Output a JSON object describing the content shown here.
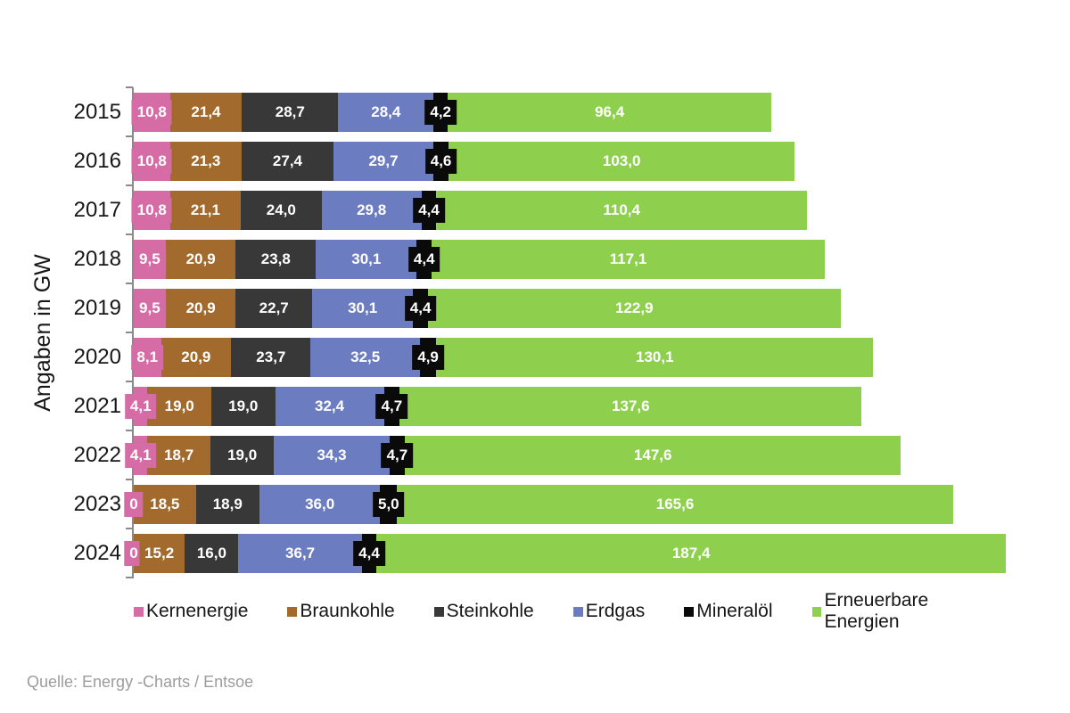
{
  "y_axis_label": "Angaben in GW",
  "source_note": "Quelle: Energy -Charts / Entsoe",
  "chart_data": {
    "type": "bar",
    "orientation": "horizontal_stacked",
    "title": "",
    "ylabel": "Angaben in GW",
    "xlabel": "",
    "unit": "GW",
    "xlim": [
      0,
      260
    ],
    "grid": false,
    "legend_position": "bottom",
    "value_format": "german decimal comma, white bold labels on segment-colored boxes",
    "categories": [
      "2015",
      "2016",
      "2017",
      "2018",
      "2019",
      "2020",
      "2021",
      "2022",
      "2023",
      "2024"
    ],
    "series": [
      {
        "name": "Kernenergie",
        "color": "#d56ca6",
        "values": [
          10.8,
          10.8,
          10.8,
          9.5,
          9.5,
          8.1,
          4.1,
          4.1,
          0,
          0
        ],
        "labels": [
          "10,8",
          "10,8",
          "10,8",
          "9,5",
          "9,5",
          "8,1",
          "4,1",
          "4,1",
          "0",
          "0"
        ]
      },
      {
        "name": "Braunkohle",
        "color": "#a26b2d",
        "values": [
          21.4,
          21.3,
          21.1,
          20.9,
          20.9,
          20.9,
          19.0,
          18.7,
          18.5,
          15.2
        ],
        "labels": [
          "21,4",
          "21,3",
          "21,1",
          "20,9",
          "20,9",
          "20,9",
          "19,0",
          "18,7",
          "18,5",
          "15,2"
        ]
      },
      {
        "name": "Steinkohle",
        "color": "#383838",
        "values": [
          28.7,
          27.4,
          24.0,
          23.8,
          22.7,
          23.7,
          19.0,
          19.0,
          18.9,
          16.0
        ],
        "labels": [
          "28,7",
          "27,4",
          "24,0",
          "23,8",
          "22,7",
          "23,7",
          "19,0",
          "19,0",
          "18,9",
          "16,0"
        ]
      },
      {
        "name": "Erdgas",
        "color": "#6c7cc0",
        "values": [
          28.4,
          29.7,
          29.8,
          30.1,
          30.1,
          32.5,
          32.4,
          34.3,
          36.0,
          36.7
        ],
        "labels": [
          "28,4",
          "29,7",
          "29,8",
          "30,1",
          "30,1",
          "32,5",
          "32,4",
          "34,3",
          "36,0",
          "36,7"
        ]
      },
      {
        "name": "Mineralöl",
        "color": "#0a0a0a",
        "values": [
          4.2,
          4.6,
          4.4,
          4.4,
          4.4,
          4.9,
          4.7,
          4.7,
          5.0,
          4.4
        ],
        "labels": [
          "4,2",
          "4,6",
          "4,4",
          "4,4",
          "4,4",
          "4,9",
          "4,7",
          "4,7",
          "5,0",
          "4,4"
        ]
      },
      {
        "name": "Erneuerbare Energien",
        "color": "#8ed04e",
        "values": [
          96.4,
          103.0,
          110.4,
          117.1,
          122.9,
          130.1,
          137.6,
          147.6,
          165.6,
          187.4
        ],
        "labels": [
          "96,4",
          "103,0",
          "110,4",
          "117,1",
          "122,9",
          "130,1",
          "137,6",
          "147,6",
          "165,6",
          "187,4"
        ]
      }
    ],
    "totals": [
      189.9,
      196.8,
      200.5,
      205.8,
      210.5,
      220.2,
      216.8,
      228.4,
      244.0,
      259.7
    ]
  }
}
